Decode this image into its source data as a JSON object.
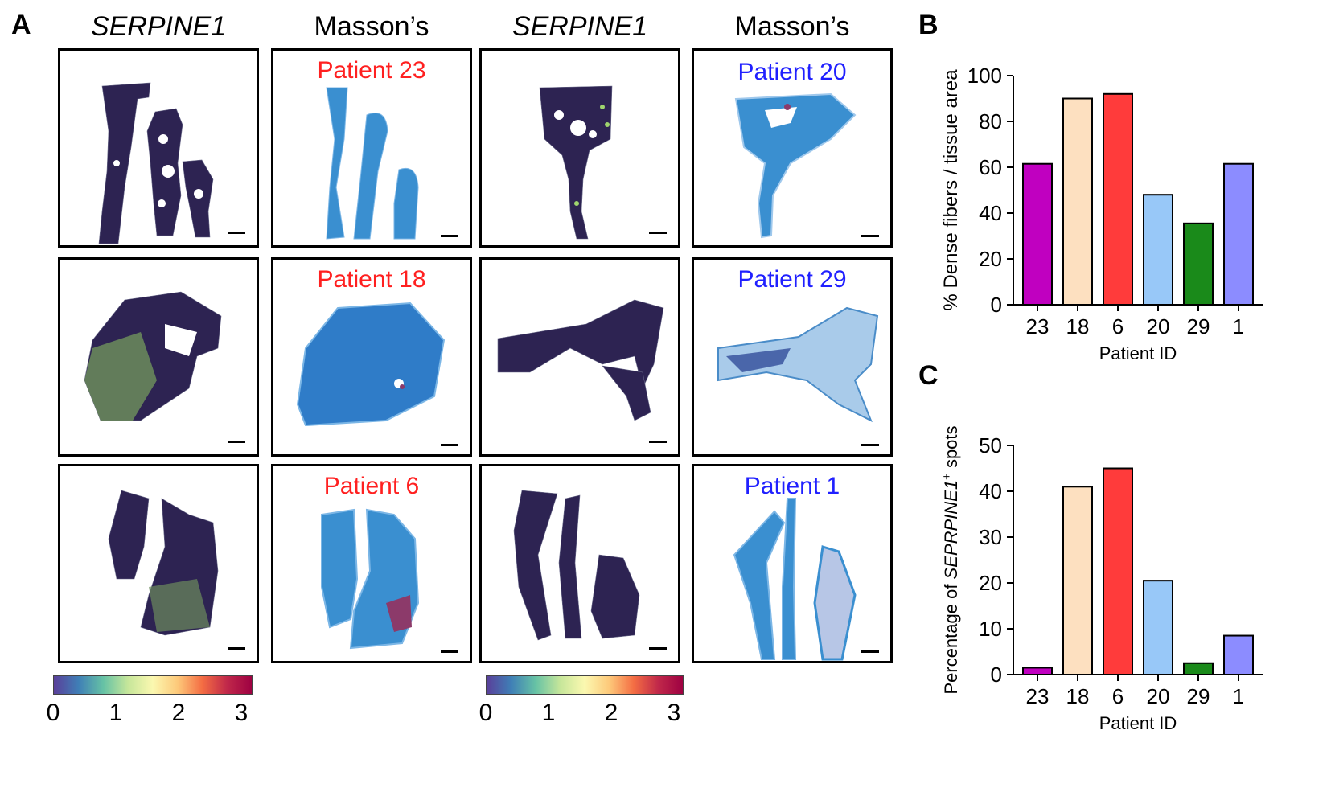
{
  "panel_letters": {
    "a": "A",
    "b": "B",
    "c": "C"
  },
  "column_headers": {
    "c1": "SERPINE1",
    "c2": "Masson’s",
    "c3": "SERPINE1",
    "c4": "Masson’s"
  },
  "patients": {
    "p23": "Patient 23",
    "p18": "Patient 18",
    "p6": "Patient 6",
    "p20": "Patient 20",
    "p29": "Patient 29",
    "p1": "Patient 1"
  },
  "colors": {
    "high_group_label": "#ff2020",
    "low_group_label": "#2020ff",
    "spot_dark": "#2d2352",
    "masson_blue": "#3a8fd0"
  },
  "colorbar": {
    "ticks": [
      "0",
      "1",
      "2",
      "3"
    ]
  },
  "chart_data": [
    {
      "type": "bar",
      "panel": "B",
      "categories": [
        "23",
        "18",
        "6",
        "20",
        "29",
        "1"
      ],
      "values": [
        61.5,
        90,
        92,
        48,
        35.5,
        61.5
      ],
      "bar_colors": [
        "#c000c0",
        "#fde0c0",
        "#ff3b3b",
        "#98c8f8",
        "#1a8a1a",
        "#8c8cff"
      ],
      "ylabel": "% Dense fibers / tissue area",
      "xlabel": "Patient ID",
      "ylim": [
        0,
        100
      ],
      "yticks": [
        "0",
        "20",
        "40",
        "60",
        "80",
        "100"
      ]
    },
    {
      "type": "bar",
      "panel": "C",
      "categories": [
        "23",
        "18",
        "6",
        "20",
        "29",
        "1"
      ],
      "values": [
        1.5,
        41,
        45,
        20.5,
        2.5,
        8.5
      ],
      "bar_colors": [
        "#c000c0",
        "#fde0c0",
        "#ff3b3b",
        "#98c8f8",
        "#1a8a1a",
        "#8c8cff"
      ],
      "ylabel_prefix": "Percentage of ",
      "ylabel_italic": "SEPRPINE1",
      "ylabel_sup": "+",
      "ylabel_suffix": " spots",
      "xlabel": "Patient ID",
      "ylim": [
        0,
        50
      ],
      "yticks": [
        "0",
        "10",
        "20",
        "30",
        "40",
        "50"
      ]
    }
  ]
}
